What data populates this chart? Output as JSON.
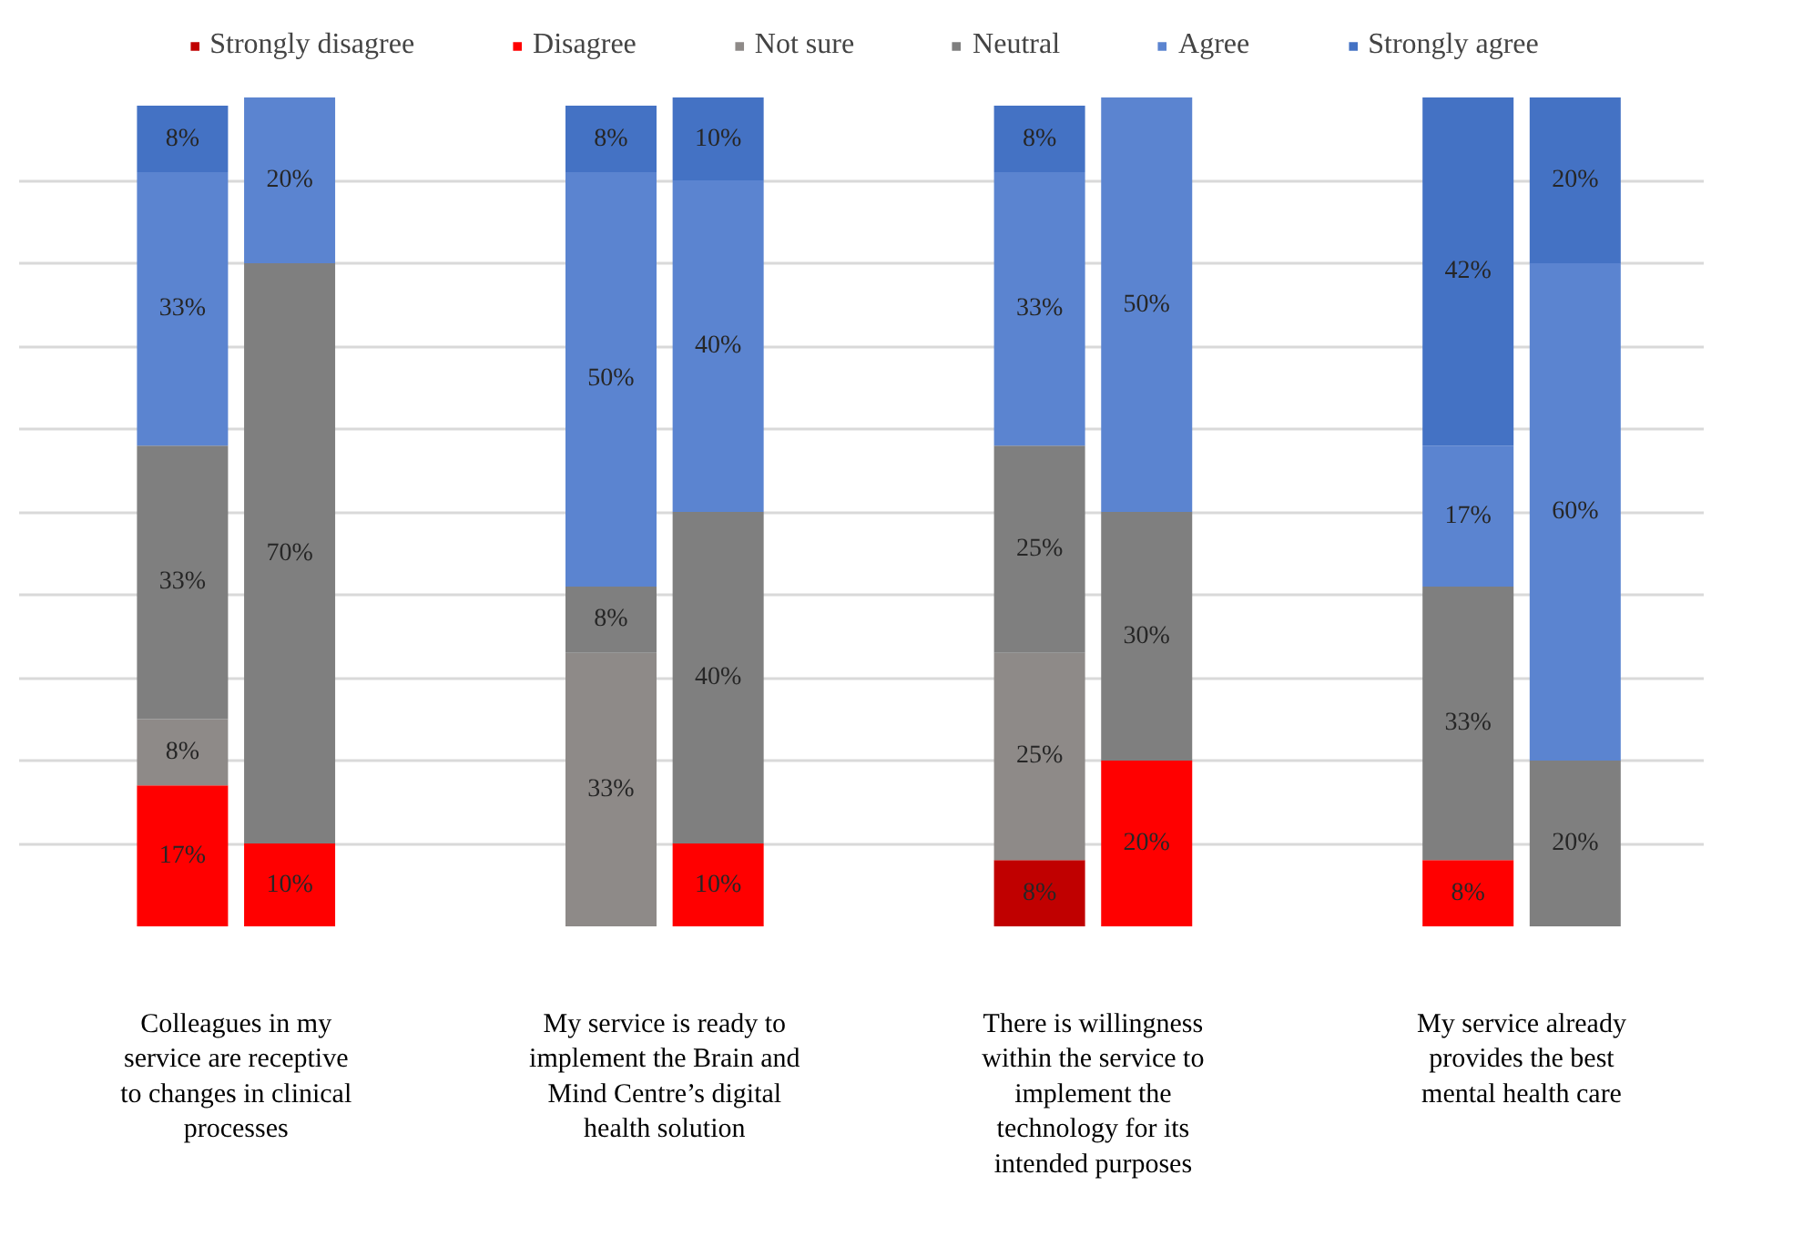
{
  "chart_data": {
    "type": "bar",
    "stacked": true,
    "categories": [
      null,
      "Colleagues in my service are receptive to changes in clinical processes",
      null,
      null,
      null,
      null,
      null,
      null,
      null,
      "My service is ready to implement the Brain and Mind Centre’s digital health solution",
      null,
      null,
      null,
      null,
      null,
      null,
      null,
      "There is willingness within the service to implement the technology for its intended purposes",
      null,
      null,
      null,
      null,
      null,
      null,
      null,
      "My service already provides the best mental health care",
      null
    ],
    "series": [
      {
        "name": "Strongly disagree",
        "color": "#c00000",
        "values": [
          null,
          null,
          null,
          null,
          null,
          null,
          null,
          null,
          null,
          null,
          null,
          null,
          null,
          null,
          null,
          null,
          8,
          null,
          null,
          null,
          null,
          null,
          null,
          null,
          null,
          null,
          null
        ],
        "value_labels": [
          null,
          null,
          null,
          null,
          null,
          null,
          null,
          null,
          null,
          null,
          null,
          null,
          null,
          null,
          null,
          null,
          "8%",
          null,
          null,
          null,
          null,
          null,
          null,
          null,
          null,
          null,
          null
        ]
      },
      {
        "name": "Disagree",
        "color": "#ff0000",
        "values": [
          17,
          null,
          10,
          null,
          null,
          null,
          null,
          null,
          null,
          null,
          10,
          null,
          null,
          null,
          null,
          null,
          null,
          null,
          20,
          null,
          null,
          null,
          null,
          null,
          8,
          null,
          null
        ],
        "value_labels": [
          "17%",
          null,
          "10%",
          null,
          null,
          null,
          null,
          null,
          null,
          null,
          "10%",
          null,
          null,
          null,
          null,
          null,
          null,
          null,
          "20%",
          null,
          null,
          null,
          null,
          null,
          "8%",
          null,
          null
        ]
      },
      {
        "name": "Not sure",
        "color": "#8e8a88",
        "values": [
          8,
          null,
          null,
          null,
          null,
          null,
          null,
          null,
          33,
          null,
          null,
          null,
          null,
          null,
          null,
          null,
          25,
          null,
          null,
          null,
          null,
          null,
          null,
          null,
          null,
          null,
          null
        ],
        "value_labels": [
          "8%",
          null,
          null,
          null,
          null,
          null,
          null,
          null,
          "33%",
          null,
          null,
          null,
          null,
          null,
          null,
          null,
          "25%",
          null,
          null,
          null,
          null,
          null,
          null,
          null,
          null,
          null,
          null
        ]
      },
      {
        "name": "Neutral",
        "color": "#7f7f7f",
        "values": [
          33,
          null,
          70,
          null,
          null,
          null,
          null,
          null,
          8,
          null,
          40,
          null,
          null,
          null,
          null,
          null,
          25,
          null,
          30,
          null,
          null,
          null,
          null,
          null,
          33,
          null,
          20
        ],
        "value_labels": [
          "33%",
          null,
          "70%",
          null,
          null,
          null,
          null,
          null,
          "8%",
          null,
          "40%",
          null,
          null,
          null,
          null,
          null,
          "25%",
          null,
          "30%",
          null,
          null,
          null,
          null,
          null,
          "33%",
          null,
          "20%"
        ]
      },
      {
        "name": "Agree",
        "color": "#5b84d0",
        "values": [
          33,
          null,
          20,
          null,
          null,
          null,
          null,
          null,
          50,
          null,
          40,
          null,
          null,
          null,
          null,
          null,
          33,
          null,
          50,
          null,
          null,
          null,
          null,
          null,
          17,
          null,
          60
        ],
        "value_labels": [
          "33%",
          null,
          "20%",
          null,
          null,
          null,
          null,
          null,
          "50%",
          null,
          "40%",
          null,
          null,
          null,
          null,
          null,
          "33%",
          null,
          "50%",
          null,
          null,
          null,
          null,
          null,
          "17%",
          null,
          "60%"
        ]
      },
      {
        "name": "Strongly agree",
        "color": "#4472c4",
        "values": [
          8,
          null,
          null,
          null,
          null,
          null,
          null,
          null,
          8,
          null,
          10,
          null,
          null,
          null,
          null,
          null,
          8,
          null,
          null,
          null,
          null,
          null,
          null,
          null,
          42,
          null,
          20
        ],
        "value_labels": [
          "8%",
          null,
          null,
          null,
          null,
          null,
          null,
          null,
          "8%",
          null,
          "10%",
          null,
          null,
          null,
          null,
          null,
          "8%",
          null,
          null,
          null,
          null,
          null,
          null,
          null,
          "42%",
          null,
          "20%"
        ]
      }
    ],
    "ylim": [
      0,
      100
    ],
    "yticks": [
      {
        "value": 10,
        "label": null
      },
      {
        "value": 20,
        "label": null
      },
      {
        "value": 30,
        "label": null
      },
      {
        "value": 40,
        "label": null
      },
      {
        "value": 50,
        "label": null
      },
      {
        "value": 60,
        "label": null
      },
      {
        "value": 70,
        "label": null
      },
      {
        "value": 80,
        "label": null
      },
      {
        "value": 90,
        "label": null
      }
    ],
    "grid": "y",
    "legend": "top",
    "tick_labels": "x"
  }
}
